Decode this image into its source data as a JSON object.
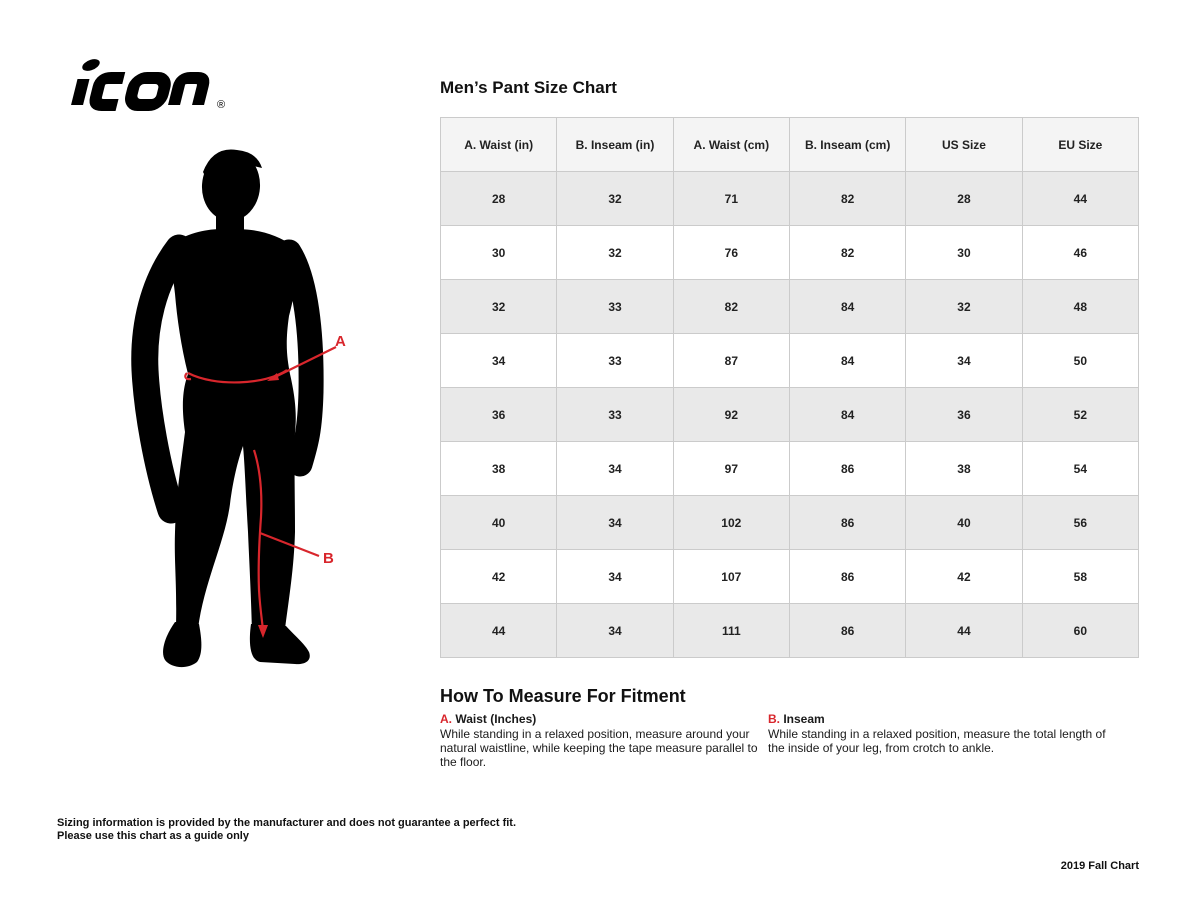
{
  "logo": {
    "brand": "icon",
    "registered_mark": "®"
  },
  "figure": {
    "waist_label": "A",
    "inseam_label": "B"
  },
  "size_chart": {
    "title": "Men’s Pant Size Chart",
    "columns": [
      "A. Waist (in)",
      "B. Inseam (in)",
      "A. Waist (cm)",
      "B. Inseam (cm)",
      "US Size",
      "EU Size"
    ],
    "rows": [
      [
        "28",
        "32",
        "71",
        "82",
        "28",
        "44"
      ],
      [
        "30",
        "32",
        "76",
        "82",
        "30",
        "46"
      ],
      [
        "32",
        "33",
        "82",
        "84",
        "32",
        "48"
      ],
      [
        "34",
        "33",
        "87",
        "84",
        "34",
        "50"
      ],
      [
        "36",
        "33",
        "92",
        "84",
        "36",
        "52"
      ],
      [
        "38",
        "34",
        "97",
        "86",
        "38",
        "54"
      ],
      [
        "40",
        "34",
        "102",
        "86",
        "40",
        "56"
      ],
      [
        "42",
        "34",
        "107",
        "86",
        "42",
        "58"
      ],
      [
        "44",
        "34",
        "111",
        "86",
        "44",
        "60"
      ]
    ]
  },
  "measure": {
    "heading": "How To Measure For Fitment",
    "items": [
      {
        "key": "A.",
        "label": " Waist (Inches)",
        "text": "While standing in a relaxed position, measure around your natural waistline, while keeping the tape measure parallel to the floor."
      },
      {
        "key": "B.",
        "label": " Inseam",
        "text": "While standing in a relaxed position, measure the total length of the inside of your leg, from crotch to ankle."
      }
    ]
  },
  "footer": {
    "disclaimer_line1": "Sizing information is provided by the manufacturer and does not guarantee a perfect fit.",
    "disclaimer_line2": "Please use this chart as a guide only",
    "edition": "2019 Fall Chart"
  },
  "colors": {
    "accent_red": "#d8262c",
    "silhouette_black": "#000000",
    "header_bg": "#f4f4f4",
    "row_alt_bg": "#e9e9e9",
    "table_border": "#cbcbcb"
  }
}
